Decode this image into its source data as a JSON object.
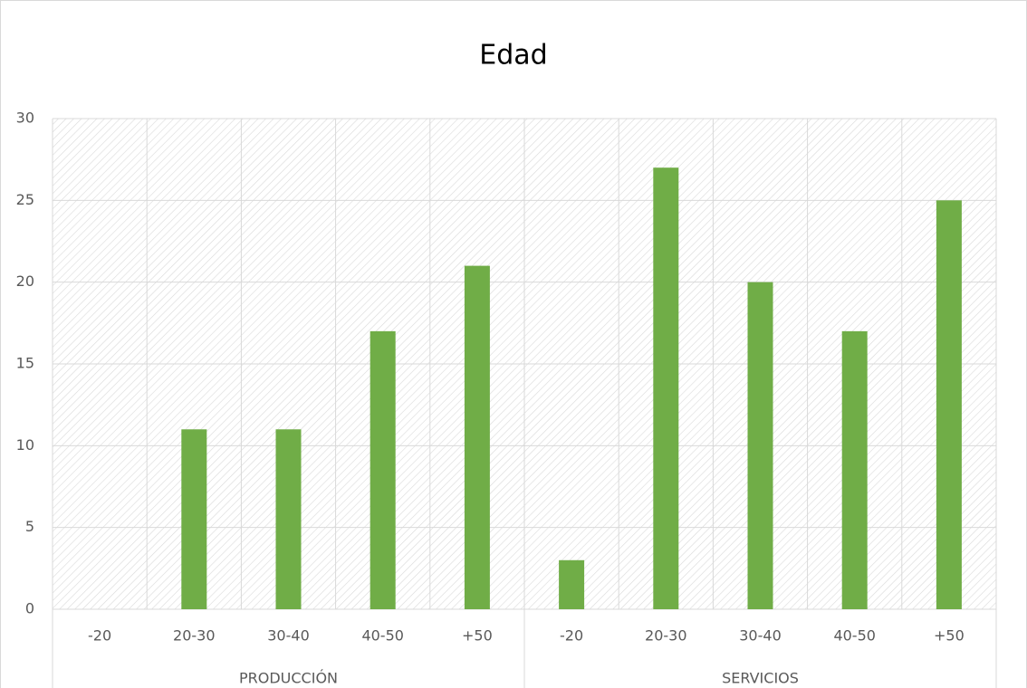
{
  "chart_data": {
    "type": "bar",
    "title": "Edad",
    "groups": [
      {
        "name": "PRODUCCIÓN",
        "categories": [
          "-20",
          "20-30",
          "30-40",
          "40-50",
          "+50"
        ],
        "values": [
          0,
          11,
          11,
          17,
          21
        ]
      },
      {
        "name": "SERVICIOS",
        "categories": [
          "-20",
          "20-30",
          "30-40",
          "40-50",
          "+50"
        ],
        "values": [
          3,
          27,
          20,
          17,
          25
        ]
      }
    ],
    "color": "#70ad47",
    "ylim": [
      0,
      30
    ],
    "yticks": [
      0,
      5,
      10,
      15,
      20,
      25,
      30
    ],
    "grid": true
  }
}
